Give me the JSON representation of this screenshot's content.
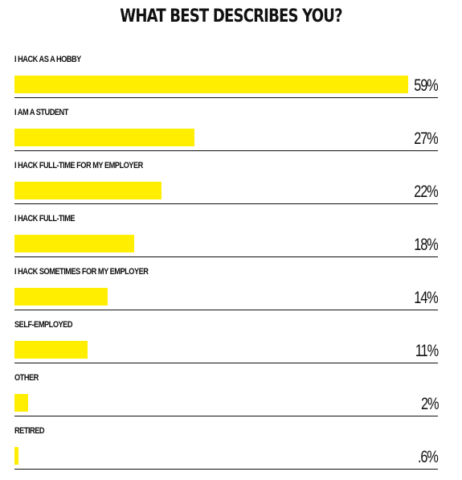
{
  "chart_data": {
    "type": "bar",
    "orientation": "horizontal",
    "title": "WHAT BEST DESCRIBES YOU?",
    "xlim": [
      0,
      59
    ],
    "bar_color": "#ffee00",
    "categories": [
      "I HACK AS A HOBBY",
      "I AM A STUDENT",
      "I HACK FULL-TIME FOR MY EMPLOYER",
      "I HACK FULL-TIME",
      "I HACK SOMETIMES FOR MY EMPLOYER",
      "SELF-EMPLOYED",
      "OTHER",
      "RETIRED"
    ],
    "values": [
      59,
      27,
      22,
      18,
      14,
      11,
      2,
      0.6
    ],
    "value_labels": [
      "59%",
      "27%",
      "22%",
      "18%",
      "14%",
      "11%",
      "2%",
      ".6%"
    ]
  }
}
